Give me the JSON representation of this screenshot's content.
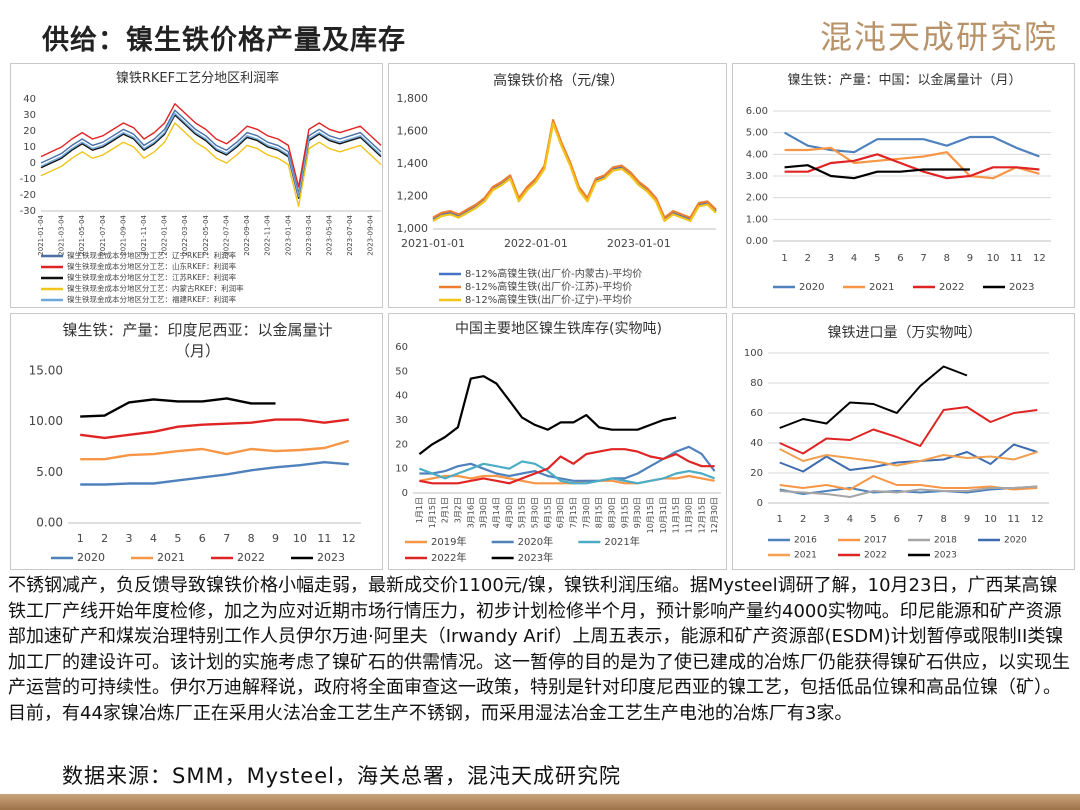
{
  "header": {
    "title": "供给：镍生铁价格产量及库存",
    "logo": "混沌天成研究院"
  },
  "chart_data": [
    {
      "type": "line",
      "title": "镍铁RKEF工艺分地区利润率",
      "categories": [
        "2021-01-04",
        null,
        "2021-03-04",
        null,
        "2021-05-04",
        null,
        "2021-07-04",
        null,
        "2021-09-04",
        null,
        "2021-11-04",
        null,
        "2022-01-04",
        null,
        "2022-03-04",
        null,
        "2022-05-04",
        null,
        "2022-07-04",
        null,
        "2022-09-04",
        null,
        "2022-11-04",
        null,
        "2023-01-04",
        null,
        "2023-03-04",
        null,
        "2023-05-04",
        null,
        "2023-07-04",
        null,
        "2023-09-04",
        null
      ],
      "series": [
        {
          "name": "镍生铁现金成本分地区分工艺：辽宁RKEF：利润率",
          "color": "#4a6fa5",
          "values": [
            0,
            3,
            6,
            11,
            15,
            11,
            13,
            17,
            21,
            18,
            11,
            15,
            21,
            33,
            27,
            21,
            17,
            11,
            8,
            13,
            19,
            17,
            13,
            11,
            7,
            -19,
            17,
            21,
            17,
            15,
            17,
            19,
            13,
            7
          ]
        },
        {
          "name": "镍生铁现金成本分地区分工艺：山东RKEF：利润率",
          "color": "#e02424",
          "values": [
            4,
            7,
            10,
            15,
            19,
            15,
            17,
            21,
            25,
            22,
            15,
            19,
            25,
            37,
            31,
            25,
            21,
            15,
            12,
            17,
            23,
            21,
            17,
            15,
            11,
            -15,
            21,
            25,
            21,
            19,
            21,
            23,
            17,
            11
          ]
        },
        {
          "name": "镍生铁现金成本分地区分工艺：江苏RKEF：利润率",
          "color": "#111111",
          "values": [
            -3,
            0,
            3,
            8,
            12,
            8,
            10,
            14,
            18,
            15,
            8,
            12,
            18,
            30,
            24,
            18,
            14,
            8,
            5,
            10,
            16,
            14,
            10,
            8,
            4,
            -22,
            14,
            18,
            14,
            12,
            14,
            16,
            10,
            4
          ]
        },
        {
          "name": "镍生铁现金成本分地区分工艺：内蒙古RKEF：利润率",
          "color": "#f2c31a",
          "values": [
            -8,
            -5,
            -2,
            3,
            7,
            3,
            5,
            9,
            13,
            10,
            3,
            7,
            13,
            25,
            19,
            13,
            9,
            3,
            0,
            5,
            11,
            9,
            5,
            3,
            -1,
            -27,
            9,
            13,
            9,
            7,
            9,
            11,
            5,
            -1
          ]
        },
        {
          "name": "镍生铁现金成本分地区分工艺：福建RKEF：利润率",
          "color": "#6fa8dc",
          "values": [
            -2,
            1,
            4,
            9,
            13,
            9,
            11,
            15,
            19,
            16,
            9,
            13,
            19,
            31,
            25,
            19,
            15,
            9,
            6,
            11,
            17,
            15,
            11,
            9,
            5,
            -21,
            15,
            19,
            15,
            13,
            15,
            17,
            11,
            5
          ]
        }
      ],
      "ylim": [
        -30,
        40
      ],
      "yticks": [
        -30,
        -20,
        -10,
        0,
        10,
        20,
        30,
        40
      ],
      "grid": false,
      "legend": "bottom"
    },
    {
      "type": "line",
      "title": "高镍铁价格（元/镍）",
      "categories": [
        "2021-01-01",
        null,
        null,
        null,
        null,
        null,
        null,
        null,
        null,
        null,
        null,
        null,
        "2022-01-01",
        null,
        null,
        null,
        null,
        null,
        null,
        null,
        null,
        null,
        null,
        null,
        "2023-01-01",
        null,
        null,
        null,
        null,
        null,
        null,
        null,
        null,
        null
      ],
      "series": [
        {
          "name": "8-12%高镍生铁(出厂价-内蒙古)-平均价",
          "color": "#4472c4",
          "values": [
            1060,
            1090,
            1100,
            1080,
            1110,
            1140,
            1180,
            1250,
            1280,
            1320,
            1180,
            1250,
            1300,
            1380,
            1660,
            1520,
            1400,
            1250,
            1180,
            1300,
            1320,
            1370,
            1380,
            1340,
            1280,
            1240,
            1180,
            1060,
            1100,
            1080,
            1060,
            1150,
            1160,
            1110
          ]
        },
        {
          "name": "8-12%高镍生铁(出厂价-江苏)-平均价",
          "color": "#ed7d31",
          "values": [
            1070,
            1100,
            1110,
            1090,
            1120,
            1150,
            1190,
            1260,
            1290,
            1330,
            1190,
            1260,
            1310,
            1390,
            1670,
            1530,
            1410,
            1260,
            1190,
            1310,
            1330,
            1380,
            1390,
            1350,
            1290,
            1250,
            1190,
            1070,
            1110,
            1090,
            1070,
            1160,
            1170,
            1120
          ]
        },
        {
          "name": "8-12%高镍生铁(出厂价-辽宁)-平均价",
          "color": "#f2c31a",
          "values": [
            1050,
            1080,
            1090,
            1070,
            1100,
            1130,
            1170,
            1240,
            1270,
            1310,
            1170,
            1240,
            1290,
            1370,
            1650,
            1510,
            1390,
            1240,
            1170,
            1290,
            1310,
            1360,
            1370,
            1330,
            1270,
            1230,
            1170,
            1050,
            1090,
            1070,
            1050,
            1140,
            1150,
            1100
          ]
        }
      ],
      "ylim": [
        1000,
        1800
      ],
      "yticks": [
        {
          "value": 1000,
          "label": "1,000"
        },
        {
          "value": 1200,
          "label": "1,200"
        },
        {
          "value": 1400,
          "label": "1,400"
        },
        {
          "value": 1600,
          "label": "1,600"
        },
        {
          "value": 1800,
          "label": "1,800"
        }
      ],
      "grid": false,
      "legend": "bottom"
    },
    {
      "type": "line",
      "title": "镍生铁：产量：中国：以金属量计（月）",
      "categories": [
        "1",
        "2",
        "3",
        "4",
        "5",
        "6",
        "7",
        "8",
        "9",
        "10",
        "11",
        "12"
      ],
      "series": [
        {
          "name": "2020",
          "color": "#4f81bd",
          "values": [
            5.0,
            4.4,
            4.2,
            4.1,
            4.7,
            4.7,
            4.7,
            4.4,
            4.8,
            4.8,
            4.3,
            3.9
          ]
        },
        {
          "name": "2021",
          "color": "#f79646",
          "values": [
            4.2,
            4.2,
            4.3,
            3.6,
            3.7,
            3.8,
            3.9,
            4.1,
            3.0,
            2.9,
            3.4,
            3.1
          ]
        },
        {
          "name": "2022",
          "color": "#e02424",
          "values": [
            3.2,
            3.2,
            3.6,
            3.7,
            4.0,
            3.6,
            3.2,
            2.9,
            3.0,
            3.4,
            3.4,
            3.3
          ]
        },
        {
          "name": "2023",
          "color": "#000000",
          "values": [
            3.4,
            3.5,
            3.0,
            2.9,
            3.2,
            3.2,
            3.3,
            3.3,
            3.3,
            null,
            null,
            null
          ]
        }
      ],
      "ylim": [
        0,
        6
      ],
      "yticks": [
        {
          "value": 0,
          "label": "0.00"
        },
        {
          "value": 1,
          "label": "1.00"
        },
        {
          "value": 2,
          "label": "2.00"
        },
        {
          "value": 3,
          "label": "3.00"
        },
        {
          "value": 4,
          "label": "4.00"
        },
        {
          "value": 5,
          "label": "5.00"
        },
        {
          "value": 6,
          "label": "6.00"
        }
      ],
      "grid": true,
      "legend": "bottom"
    },
    {
      "type": "line",
      "title": "镍生铁：产量：印度尼西亚：以金属量计（月）",
      "categories": [
        "1",
        "2",
        "3",
        "4",
        "5",
        "6",
        "7",
        "8",
        "9",
        "10",
        "11",
        "12"
      ],
      "series": [
        {
          "name": "2020",
          "color": "#4f81bd",
          "values": [
            3.8,
            3.8,
            3.9,
            3.9,
            4.2,
            4.5,
            4.8,
            5.2,
            5.5,
            5.7,
            6.0,
            5.8
          ]
        },
        {
          "name": "2021",
          "color": "#f79646",
          "values": [
            6.3,
            6.3,
            6.7,
            6.8,
            7.1,
            7.3,
            6.8,
            7.3,
            7.1,
            7.2,
            7.4,
            8.1
          ]
        },
        {
          "name": "2022",
          "color": "#e02424",
          "values": [
            8.7,
            8.4,
            8.7,
            9.0,
            9.5,
            9.7,
            9.8,
            9.9,
            10.2,
            10.2,
            9.9,
            10.2
          ]
        },
        {
          "name": "2023",
          "color": "#000000",
          "values": [
            10.5,
            10.6,
            11.9,
            12.2,
            12.0,
            12.0,
            12.3,
            11.8,
            11.8,
            null,
            null,
            null
          ]
        }
      ],
      "ylim": [
        0,
        15
      ],
      "yticks": [
        {
          "value": 0,
          "label": "0.00"
        },
        {
          "value": 5,
          "label": "5.00"
        },
        {
          "value": 10,
          "label": "10.00"
        },
        {
          "value": 15,
          "label": "15.00"
        }
      ],
      "grid": false,
      "legend": "bottom"
    },
    {
      "type": "line",
      "title": "中国主要地区镍生铁库存(实物吨)",
      "categories": [
        "1月1日",
        "1月15日",
        "2月1日",
        "3月2日",
        "3月16日",
        "3月30日",
        "4月14日",
        "4月30日",
        "5月15日",
        "5月30日",
        "6月15日",
        "6月30日",
        "7月15日",
        "7月30日",
        "8月15日",
        "8月30日",
        "9月15日",
        "9月30日",
        "10月15日",
        "10月31日",
        "11月15日",
        "11月30日",
        "12月15日",
        "12月30日"
      ],
      "series": [
        {
          "name": "2019年",
          "color": "#f79646",
          "values": [
            5,
            6,
            7,
            7,
            6,
            7,
            7,
            6,
            5,
            4,
            4,
            4,
            4,
            5,
            5,
            5,
            4,
            4,
            5,
            6,
            6,
            7,
            6,
            5
          ]
        },
        {
          "name": "2020年",
          "color": "#4f81bd",
          "values": [
            8,
            8,
            9,
            11,
            12,
            10,
            8,
            7,
            8,
            9,
            7,
            6,
            5,
            5,
            5,
            6,
            6,
            8,
            11,
            14,
            17,
            19,
            16,
            9
          ]
        },
        {
          "name": "2021年",
          "color": "#4bacc6",
          "values": [
            10,
            8,
            6,
            8,
            10,
            12,
            11,
            10,
            13,
            12,
            9,
            5,
            4,
            4,
            5,
            6,
            5,
            4,
            5,
            6,
            8,
            9,
            8,
            6
          ]
        },
        {
          "name": "2022年",
          "color": "#e02424",
          "values": [
            5,
            4,
            4,
            4,
            5,
            6,
            5,
            4,
            6,
            8,
            10,
            15,
            12,
            16,
            17,
            18,
            18,
            17,
            15,
            14,
            16,
            13,
            11,
            11
          ]
        },
        {
          "name": "2023年",
          "color": "#000000",
          "values": [
            16,
            20,
            23,
            27,
            47,
            48,
            45,
            38,
            31,
            28,
            26,
            29,
            29,
            32,
            27,
            26,
            26,
            26,
            28,
            30,
            31,
            null,
            null,
            null
          ]
        }
      ],
      "ylim": [
        0,
        60
      ],
      "yticks": [
        0,
        10,
        20,
        30,
        40,
        50,
        60
      ],
      "grid": false,
      "legend": "bottom"
    },
    {
      "type": "line",
      "title": "镍铁进口量（万实物吨）",
      "categories": [
        "1",
        "2",
        "3",
        "4",
        "5",
        "6",
        "7",
        "8",
        "9",
        "10",
        "11",
        "12"
      ],
      "series": [
        {
          "name": "2016",
          "color": "#4f81bd",
          "values": [
            9,
            6,
            8,
            10,
            7,
            8,
            7,
            8,
            7,
            9,
            10,
            11
          ]
        },
        {
          "name": "2017",
          "color": "#f79646",
          "values": [
            12,
            10,
            12,
            9,
            18,
            12,
            12,
            10,
            10,
            11,
            9,
            10
          ]
        },
        {
          "name": "2018",
          "color": "#a5a5a5",
          "values": [
            8,
            7,
            6,
            4,
            8,
            7,
            9,
            8,
            8,
            10,
            10,
            11
          ]
        },
        {
          "name": "2020",
          "color": "#3f6cb0",
          "values": [
            27,
            21,
            31,
            22,
            24,
            27,
            28,
            29,
            34,
            26,
            39,
            34
          ]
        },
        {
          "name": "2021",
          "color": "#f0a050",
          "values": [
            36,
            28,
            32,
            30,
            28,
            25,
            28,
            32,
            30,
            31,
            29,
            34
          ]
        },
        {
          "name": "2022",
          "color": "#e02424",
          "values": [
            40,
            33,
            43,
            42,
            49,
            44,
            38,
            62,
            64,
            54,
            60,
            62
          ]
        },
        {
          "name": "2023",
          "color": "#000000",
          "values": [
            50,
            56,
            53,
            67,
            66,
            60,
            78,
            91,
            85,
            null,
            null,
            null
          ]
        }
      ],
      "ylim": [
        0,
        100
      ],
      "yticks": [
        0,
        20,
        40,
        60,
        80,
        100
      ],
      "grid": true,
      "legend": "bottom"
    }
  ],
  "body": {
    "text": "不锈钢减产，负反馈导致镍铁价格小幅走弱，最新成交价1100元/镍，镍铁利润压缩。据Mysteel调研了解，10月23日，广西某高镍铁工厂产线开始年度检修，加之为应对近期市场行情压力，初步计划检修半个月，预计影响产量约4000实物吨。印尼能源和矿产资源部加速矿产和煤炭治理特别工作人员伊尔万迪·阿里夫（Irwandy Arif）上周五表示，能源和矿产资源部(ESDM)计划暂停或限制II类镍加工厂的建设许可。该计划的实施考虑了镍矿石的供需情况。这一暂停的目的是为了使已建成的冶炼厂仍能获得镍矿石供应，以实现生产运营的可持续性。伊尔万迪解释说，政府将全面审查这一政策，特别是针对印度尼西亚的镍工艺，包括低品位镍和高品位镍（矿）。目前，有44家镍冶炼厂正在采用火法冶金工艺生产不锈钢，而采用湿法冶金工艺生产电池的冶炼厂有3家。"
  },
  "source": "数据来源：SMM，Mysteel，海关总署，混沌天成研究院"
}
